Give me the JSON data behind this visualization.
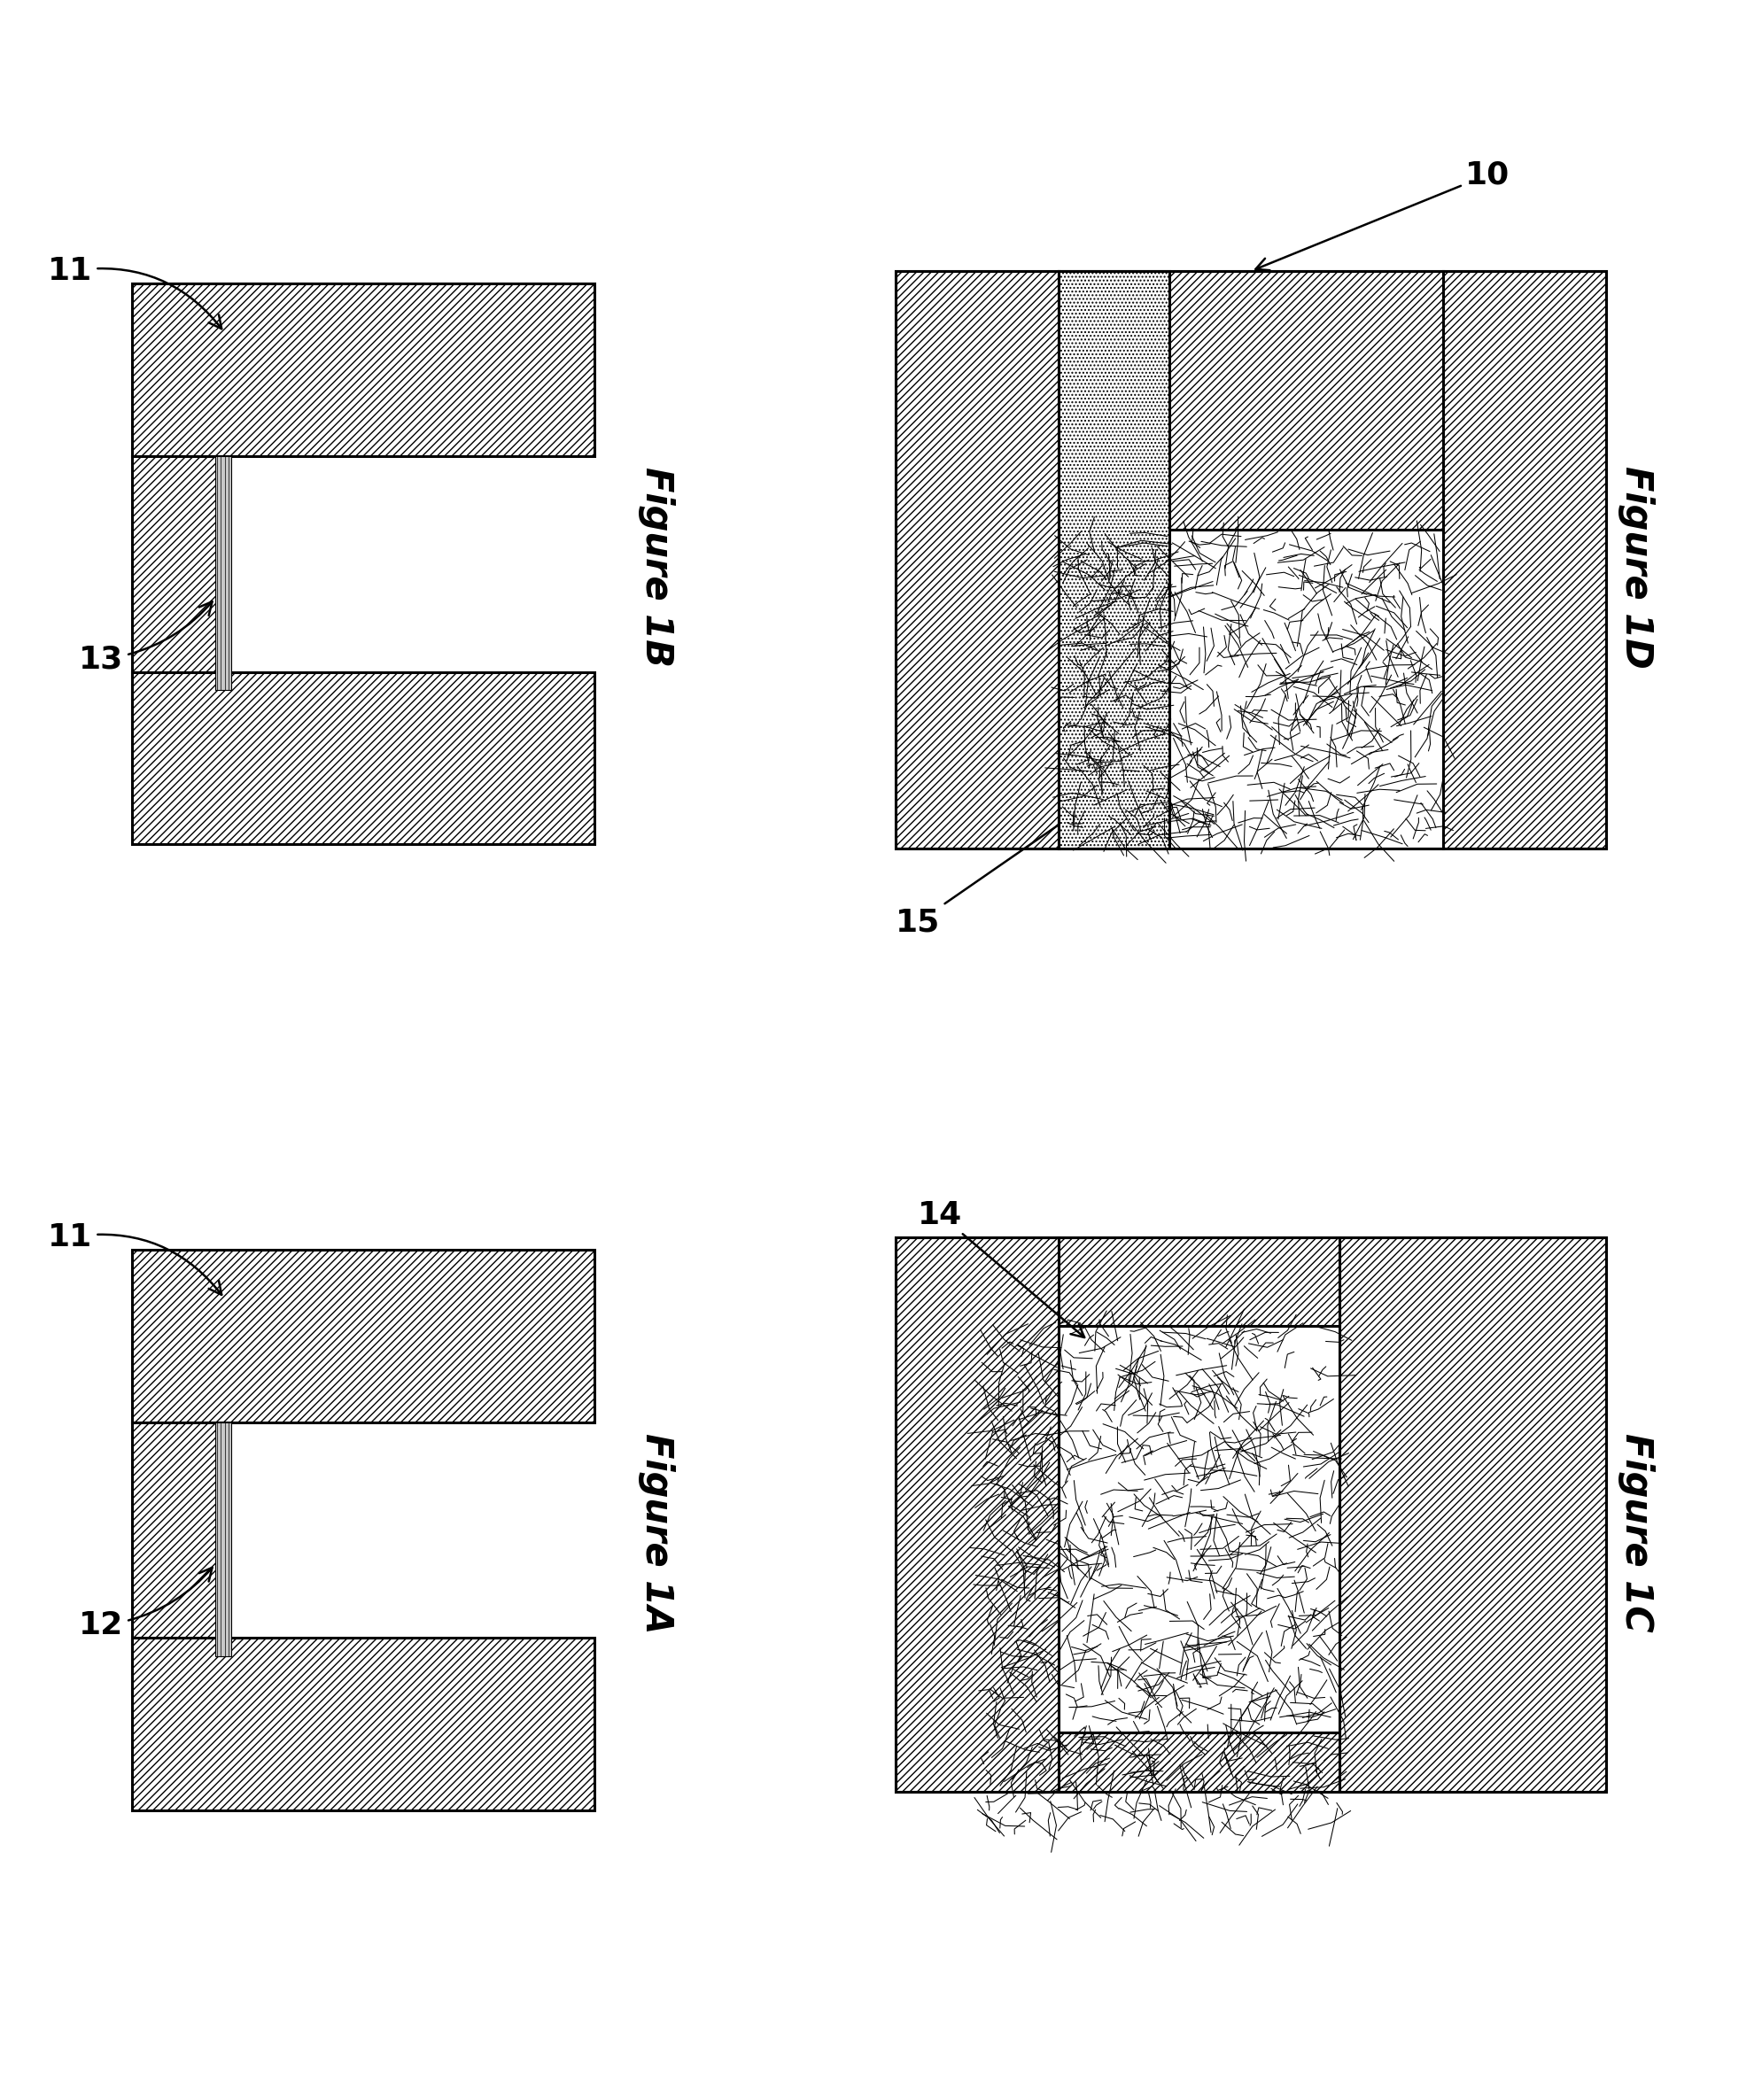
{
  "bg_color": "#ffffff",
  "fig_labels": [
    "Figure 1A",
    "Figure 1B",
    "Figure 1C",
    "Figure 1D"
  ],
  "font_size_label": 30,
  "font_size_callout": 26,
  "line_width": 2.2,
  "seeds": [
    42,
    123,
    77,
    200
  ],
  "hatch_density": "////",
  "dot_density": "....",
  "cnt_density_d": 600,
  "cnt_density_c": 800
}
